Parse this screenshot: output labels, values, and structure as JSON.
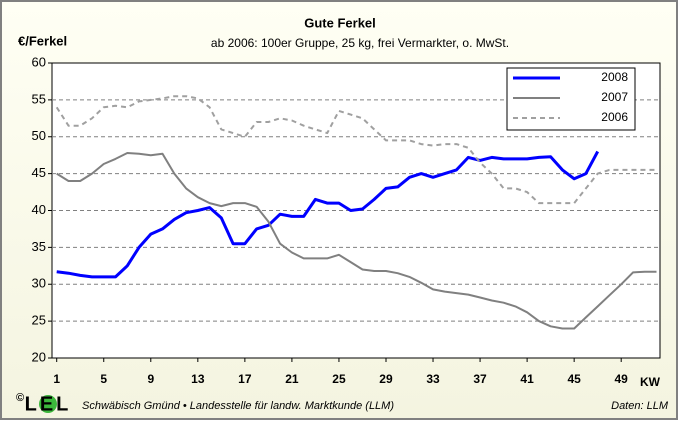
{
  "chart_data": {
    "type": "line",
    "title": "Gute Ferkel",
    "subtitle": "ab 2006: 100er Gruppe, 25 kg, frei Vermarkter, o. MwSt.",
    "y_label": "€/Ferkel",
    "x_label": "KW",
    "footer": "Schwäbisch Gmünd • Landesstelle für landw. Marktkunde (LLM)",
    "source": "Daten: LLM",
    "logo": "LEL",
    "copyright": "©",
    "x": [
      1,
      2,
      3,
      4,
      5,
      6,
      7,
      8,
      9,
      10,
      11,
      12,
      13,
      14,
      15,
      16,
      17,
      18,
      19,
      20,
      21,
      22,
      23,
      24,
      25,
      26,
      27,
      28,
      29,
      30,
      31,
      32,
      33,
      34,
      35,
      36,
      37,
      38,
      39,
      40,
      41,
      42,
      43,
      44,
      45,
      46,
      47,
      48,
      49,
      50,
      51,
      52
    ],
    "series": [
      {
        "name": "2008",
        "color": "#0000ff",
        "line_width": 3,
        "dashed": false,
        "values": [
          31.7,
          31.5,
          31.2,
          31,
          31,
          31,
          32.5,
          35,
          36.8,
          37.5,
          38.8,
          39.7,
          40,
          40.4,
          39,
          35.5,
          35.5,
          37.5,
          38,
          39.5,
          39.2,
          39.2,
          41.5,
          41,
          41,
          40,
          40.2,
          41.5,
          43,
          43.2,
          44.5,
          45,
          44.5,
          45,
          45.5,
          47.2,
          46.8,
          47.2,
          47,
          47,
          47,
          47.2,
          47.3,
          45.5,
          44.3,
          45,
          48,
          null,
          null,
          null,
          null,
          null
        ]
      },
      {
        "name": "2007",
        "color": "#808080",
        "line_width": 2,
        "dashed": false,
        "values": [
          45,
          44,
          44,
          45,
          46.3,
          47,
          47.8,
          47.7,
          47.5,
          47.7,
          45,
          43,
          41.8,
          41,
          40.6,
          41,
          41,
          40.5,
          38.5,
          35.5,
          34.3,
          33.5,
          33.5,
          33.5,
          34,
          33,
          32,
          31.8,
          31.8,
          31.5,
          31,
          30.2,
          29.3,
          29,
          28.8,
          28.6,
          28.2,
          27.8,
          27.5,
          27,
          26.2,
          25,
          24.3,
          24,
          24,
          25.5,
          27,
          28.5,
          30,
          31.6,
          31.7,
          31.7
        ]
      },
      {
        "name": "2006",
        "color": "#a0a0a0",
        "line_width": 2,
        "dashed": true,
        "values": [
          54,
          51.5,
          51.5,
          52.5,
          54,
          54.2,
          54,
          54.8,
          55,
          55.2,
          55.5,
          55.5,
          55.2,
          54,
          51,
          50.5,
          50,
          52,
          52,
          52.5,
          52.2,
          51.5,
          51,
          50.5,
          53.5,
          53,
          52.5,
          51,
          49.5,
          49.5,
          49.5,
          49,
          48.8,
          49,
          49,
          48.5,
          46.5,
          45,
          43,
          43,
          42.5,
          41,
          41,
          41,
          41,
          43,
          45,
          45.5,
          45.5,
          45.5,
          45.5,
          45.5
        ]
      }
    ],
    "xlim": [
      0.6,
      52.3
    ],
    "xticks": [
      1,
      5,
      9,
      13,
      17,
      21,
      25,
      29,
      33,
      37,
      41,
      45,
      49
    ],
    "ylim": [
      20,
      60
    ],
    "yticks": [
      20,
      25,
      30,
      35,
      40,
      45,
      50,
      55,
      60
    ],
    "grid": true,
    "legend": "upper right"
  }
}
